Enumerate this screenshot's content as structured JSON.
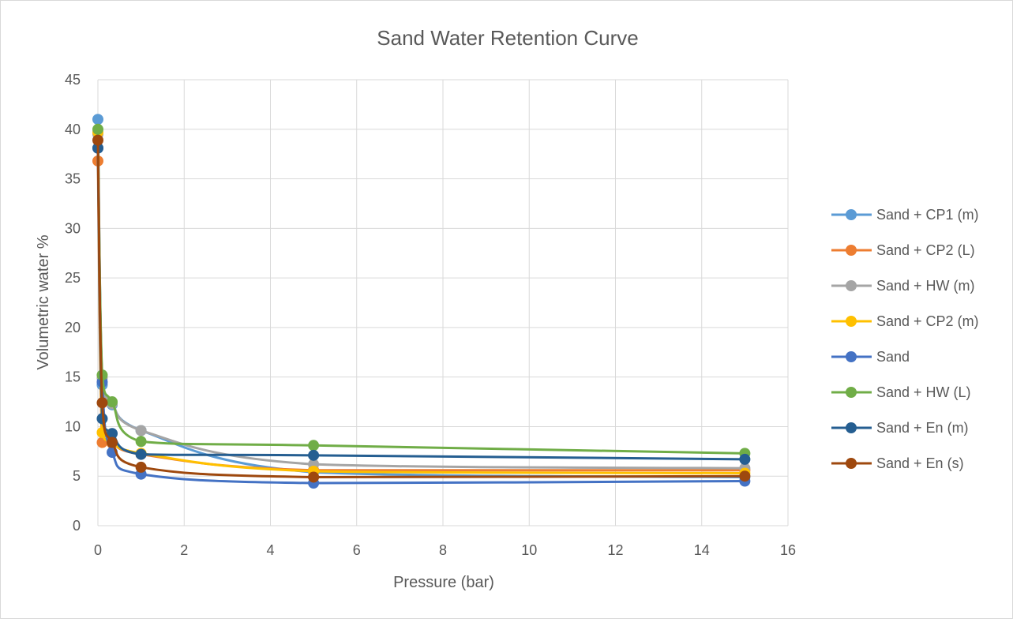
{
  "chart_data": {
    "type": "scatter",
    "title": "Sand Water Retention Curve",
    "xlabel": "Pressure (bar)",
    "ylabel": "Volumetric water %",
    "xlim": [
      0,
      16
    ],
    "ylim": [
      0,
      45
    ],
    "x_ticks": [
      0,
      2,
      4,
      6,
      8,
      10,
      12,
      14,
      16
    ],
    "y_ticks": [
      0,
      5,
      10,
      15,
      20,
      25,
      30,
      35,
      40,
      45
    ],
    "grid": true,
    "legend_position": "right",
    "x": [
      0,
      0.1,
      0.33,
      1,
      5,
      15
    ],
    "series": [
      {
        "name": "Sand + CP1 (m)",
        "color": "#5B9BD5",
        "values": [
          41.0,
          14.2,
          12.2,
          9.6,
          5.4,
          4.9
        ]
      },
      {
        "name": "Sand + CP2 (L)",
        "color": "#ED7D31",
        "values": [
          36.8,
          8.4,
          8.3,
          7.2,
          5.6,
          5.6
        ]
      },
      {
        "name": "Sand + HW (m)",
        "color": "#A5A5A5",
        "values": [
          39.5,
          14.9,
          12.3,
          9.6,
          6.2,
          5.8
        ]
      },
      {
        "name": "Sand + CP2 (m)",
        "color": "#FFC000",
        "values": [
          39.7,
          9.4,
          8.4,
          7.3,
          5.5,
          5.3
        ]
      },
      {
        "name": "Sand",
        "color": "#4472C4",
        "values": [
          38.1,
          14.5,
          7.4,
          5.2,
          4.3,
          4.5
        ]
      },
      {
        "name": "Sand + HW (L)",
        "color": "#70AD47",
        "values": [
          40.0,
          15.2,
          12.5,
          8.5,
          8.1,
          7.3
        ]
      },
      {
        "name": "Sand + En (m)",
        "color": "#255E91",
        "values": [
          38.1,
          10.8,
          9.3,
          7.2,
          7.1,
          6.7
        ]
      },
      {
        "name": "Sand + En (s)",
        "color": "#9E480E",
        "values": [
          38.9,
          12.4,
          8.4,
          5.9,
          4.9,
          5.0
        ]
      }
    ]
  }
}
